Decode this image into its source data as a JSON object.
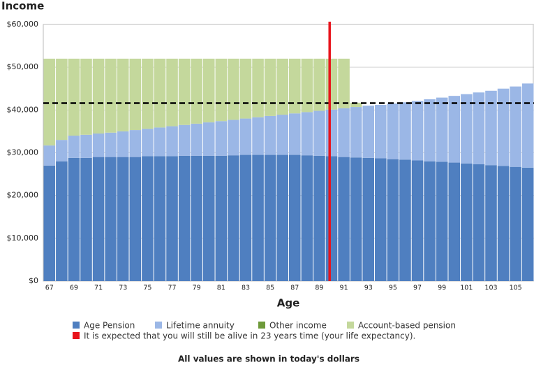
{
  "chart_data": {
    "type": "stacked_bar",
    "y_label": "Income",
    "x_label": "Age",
    "note": "All values are shown in today's dollars",
    "x": [
      67,
      68,
      69,
      70,
      71,
      72,
      73,
      74,
      75,
      76,
      77,
      78,
      79,
      80,
      81,
      82,
      83,
      84,
      85,
      86,
      87,
      88,
      89,
      90,
      91,
      92,
      93,
      94,
      95,
      96,
      97,
      98,
      99,
      100,
      101,
      102,
      103,
      104,
      105,
      106
    ],
    "xlim": [
      66.5,
      106.5
    ],
    "xticks": [
      67,
      69,
      71,
      73,
      75,
      77,
      79,
      81,
      83,
      85,
      87,
      89,
      91,
      93,
      95,
      97,
      99,
      101,
      103,
      105
    ],
    "ylim": [
      0,
      60000
    ],
    "yticks": [
      {
        "value": 0,
        "label": "$0"
      },
      {
        "value": 10000,
        "label": "$10,000"
      },
      {
        "value": 20000,
        "label": "$20,000"
      },
      {
        "value": 30000,
        "label": "$30,000"
      },
      {
        "value": 40000,
        "label": "$40,000"
      },
      {
        "value": 50000,
        "label": "$50,000"
      },
      {
        "value": 60000,
        "label": "$60,000"
      }
    ],
    "grid": true,
    "series": [
      {
        "name": "Age Pension",
        "color": "#4f7fc0",
        "values": [
          27000,
          28000,
          28800,
          28800,
          29000,
          29000,
          29000,
          29000,
          29200,
          29200,
          29200,
          29300,
          29300,
          29300,
          29300,
          29400,
          29500,
          29500,
          29500,
          29500,
          29500,
          29400,
          29300,
          29200,
          29000,
          28900,
          28800,
          28700,
          28500,
          28400,
          28200,
          28000,
          27900,
          27700,
          27500,
          27300,
          27100,
          26900,
          26700,
          26500
        ]
      },
      {
        "name": "Lifetime annuity",
        "color": "#9bb7e6",
        "values": [
          4700,
          5000,
          5200,
          5400,
          5500,
          5700,
          6000,
          6300,
          6400,
          6700,
          7000,
          7200,
          7500,
          7800,
          8100,
          8300,
          8500,
          8800,
          9100,
          9400,
          9700,
          10100,
          10500,
          10900,
          11400,
          11800,
          12200,
          12500,
          13000,
          13400,
          13900,
          14500,
          15000,
          15600,
          16200,
          16800,
          17400,
          18100,
          18800,
          19700
        ]
      },
      {
        "name": "Other income",
        "color": "#6e9a3a",
        "values": [
          0,
          0,
          0,
          0,
          0,
          0,
          0,
          0,
          0,
          0,
          0,
          0,
          0,
          0,
          0,
          0,
          0,
          0,
          0,
          0,
          0,
          0,
          0,
          0,
          0,
          0,
          0,
          0,
          0,
          0,
          0,
          0,
          0,
          0,
          0,
          0,
          0,
          0,
          0,
          0
        ]
      },
      {
        "name": "Account-based pension",
        "color": "#c4d89c",
        "values": [
          20300,
          19000,
          18000,
          17800,
          17500,
          17300,
          17000,
          16700,
          16400,
          16100,
          15800,
          15500,
          15200,
          14900,
          14600,
          14300,
          14000,
          13700,
          13400,
          13100,
          12800,
          12500,
          12200,
          11900,
          11600,
          1000,
          0,
          0,
          0,
          0,
          0,
          0,
          0,
          0,
          0,
          0,
          0,
          0,
          0,
          0
        ]
      }
    ],
    "hline": {
      "value": 41600,
      "color": "#000000"
    },
    "vline": {
      "x": 90,
      "color": "#e8141c",
      "label": "It is expected that you will still be alive in 23 years time (your life expectancy)."
    }
  }
}
